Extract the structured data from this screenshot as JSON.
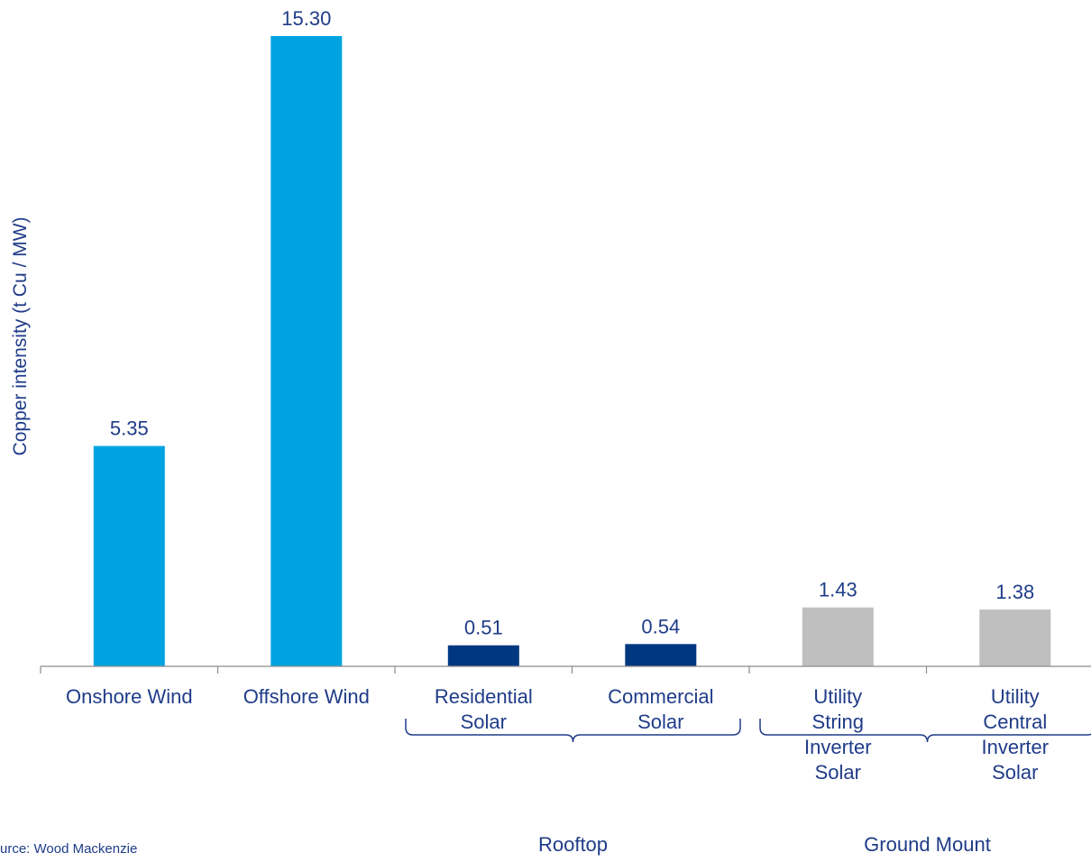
{
  "chart_data": {
    "type": "bar",
    "title": "",
    "xlabel": "",
    "ylabel": "Copper intensity (t Cu / MW)",
    "ylim": [
      0,
      15.3
    ],
    "grid": false,
    "legend": "none",
    "categories": [
      "Onshore Wind",
      "Offshore Wind",
      "Residential Solar",
      "Commercial Solar",
      "Utility String Inverter Solar",
      "Utility Central Inverter Solar"
    ],
    "values": [
      5.35,
      15.3,
      0.51,
      0.54,
      1.43,
      1.38
    ],
    "value_labels": [
      "5.35",
      "15.30",
      "0.51",
      "0.54",
      "1.43",
      "1.38"
    ],
    "bar_colors": [
      "#00a3e0",
      "#00a3e0",
      "#003781",
      "#003781",
      "#bfbfbf",
      "#bfbfbf"
    ],
    "groups": [
      {
        "label": "Rooftop",
        "categories": [
          "Residential Solar",
          "Commercial Solar"
        ]
      },
      {
        "label": "Ground Mount",
        "categories": [
          "Utility String Inverter Solar",
          "Utility Central Inverter Solar"
        ]
      }
    ],
    "source": "urce: Wood Mackenzie"
  },
  "colors": {
    "text": "#1f3c88",
    "axis": "#8c8c8c",
    "bracket": "#1f3c88"
  }
}
